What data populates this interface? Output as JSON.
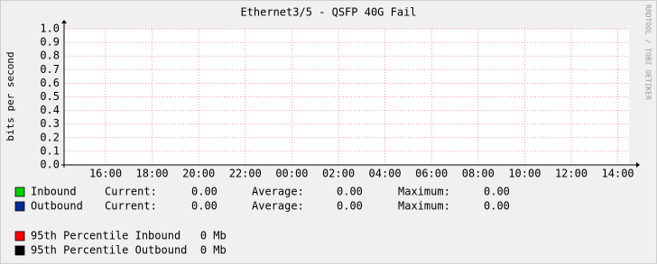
{
  "chart_data": {
    "type": "line",
    "title": "Ethernet3/5 - QSFP 40G Fail",
    "y_label": "bits per second",
    "watermark": "RRDTOOL / TOBI OETIKER",
    "ylim": [
      0,
      1
    ],
    "yticks": [
      {
        "value": 0,
        "label": "0.0"
      },
      {
        "value": 0.1,
        "label": "0.1"
      },
      {
        "value": 0.2,
        "label": "0.2"
      },
      {
        "value": 0.3,
        "label": "0.3"
      },
      {
        "value": 0.4,
        "label": "0.4"
      },
      {
        "value": 0.5,
        "label": "0.5"
      },
      {
        "value": 0.6,
        "label": "0.6"
      },
      {
        "value": 0.7,
        "label": "0.7"
      },
      {
        "value": 0.8,
        "label": "0.8"
      },
      {
        "value": 0.9,
        "label": "0.9"
      },
      {
        "value": 1,
        "label": "1.0"
      }
    ],
    "xticks": [
      "16:00",
      "18:00",
      "20:00",
      "22:00",
      "00:00",
      "02:00",
      "04:00",
      "06:00",
      "08:00",
      "10:00",
      "12:00",
      "14:00"
    ],
    "grid": true,
    "stat_labels": [
      "Current:",
      "Average:",
      "Maximum:"
    ],
    "series": [
      {
        "name": "Inbound",
        "color": "#00cf00",
        "stats": [
          "0.00",
          "0.00",
          "0.00"
        ]
      },
      {
        "name": "Outbound",
        "color": "#002a97",
        "stats": [
          "0.00",
          "0.00",
          "0.00"
        ]
      }
    ],
    "percentiles": [
      {
        "text": "95th Percentile Inbound   0 Mb",
        "color": "#ff0000"
      },
      {
        "text": "95th Percentile Outbound  0 Mb",
        "color": "#000000"
      }
    ]
  }
}
